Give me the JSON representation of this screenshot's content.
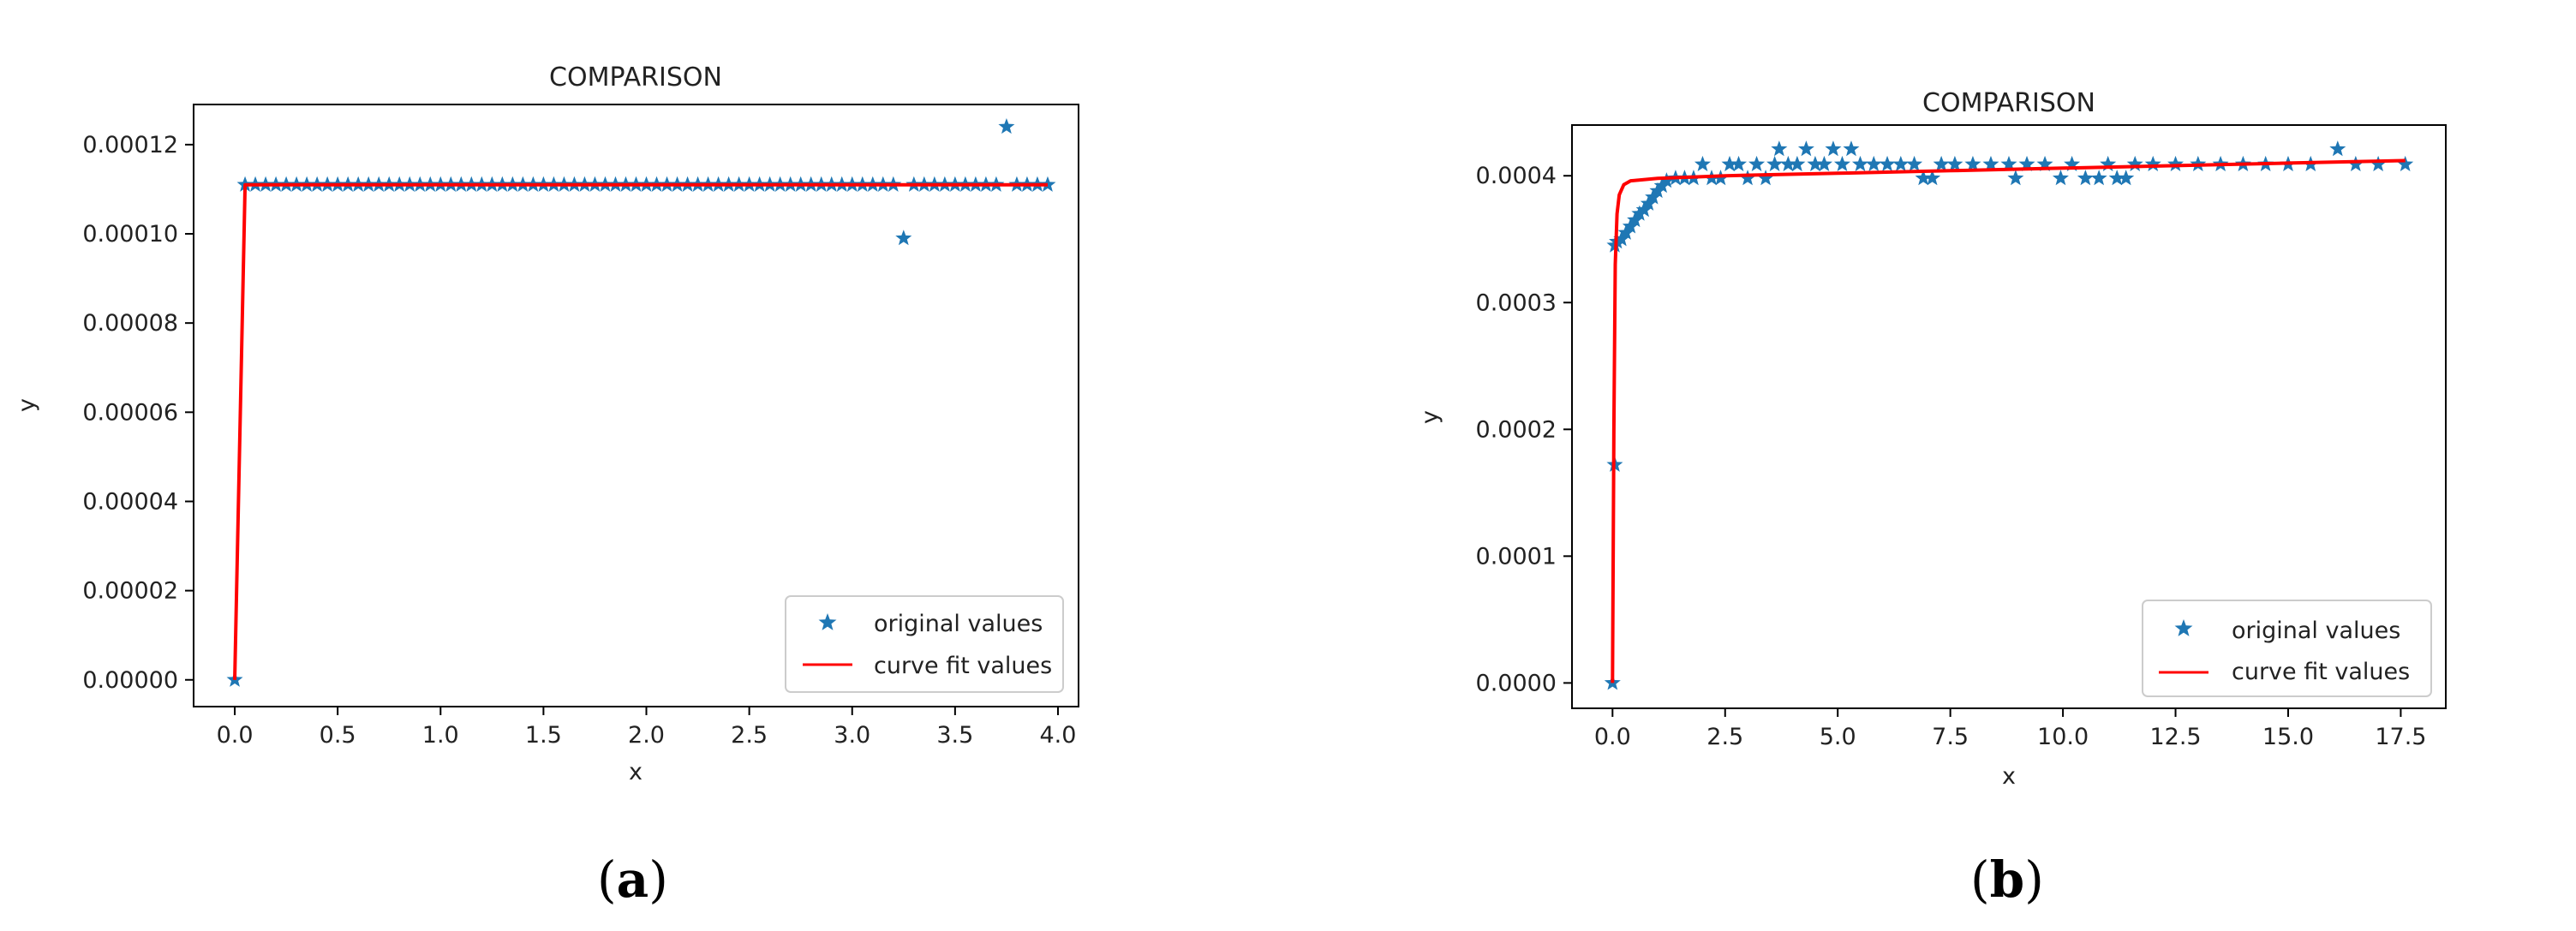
{
  "chart_data": [
    {
      "type": "scatter",
      "title": "COMPARISON",
      "xlabel": "x",
      "ylabel": "y",
      "xlim": [
        -0.2,
        4.1
      ],
      "ylim": [
        -6e-06,
        0.000129
      ],
      "xticks": [
        0.0,
        0.5,
        1.0,
        1.5,
        2.0,
        2.5,
        3.0,
        3.5,
        4.0
      ],
      "xtick_labels": [
        "0.0",
        "0.5",
        "1.0",
        "1.5",
        "2.0",
        "2.5",
        "3.0",
        "3.5",
        "4.0"
      ],
      "yticks": [
        0.0,
        2e-05,
        4e-05,
        6e-05,
        8e-05,
        0.0001,
        0.00012
      ],
      "ytick_labels": [
        "0.00000",
        "0.00002",
        "0.00004",
        "0.00006",
        "0.00008",
        "0.00010",
        "0.00012"
      ],
      "legend_position": "lower-right",
      "grid": false,
      "panel_label": {
        "open": "(",
        "letter": "a",
        "close": ")"
      },
      "series": [
        {
          "name": "original values",
          "kind": "scatter",
          "marker": "star",
          "color": "#1f77b4",
          "points": [
            [
              0.0,
              0.0
            ],
            [
              0.05,
              0.000111
            ],
            [
              0.1,
              0.000111
            ],
            [
              0.15,
              0.000111
            ],
            [
              0.2,
              0.000111
            ],
            [
              0.25,
              0.000111
            ],
            [
              0.3,
              0.000111
            ],
            [
              0.35,
              0.000111
            ],
            [
              0.4,
              0.000111
            ],
            [
              0.45,
              0.000111
            ],
            [
              0.5,
              0.000111
            ],
            [
              0.55,
              0.000111
            ],
            [
              0.6,
              0.000111
            ],
            [
              0.65,
              0.000111
            ],
            [
              0.7,
              0.000111
            ],
            [
              0.75,
              0.000111
            ],
            [
              0.8,
              0.000111
            ],
            [
              0.85,
              0.000111
            ],
            [
              0.9,
              0.000111
            ],
            [
              0.95,
              0.000111
            ],
            [
              1.0,
              0.000111
            ],
            [
              1.05,
              0.000111
            ],
            [
              1.1,
              0.000111
            ],
            [
              1.15,
              0.000111
            ],
            [
              1.2,
              0.000111
            ],
            [
              1.25,
              0.000111
            ],
            [
              1.3,
              0.000111
            ],
            [
              1.35,
              0.000111
            ],
            [
              1.4,
              0.000111
            ],
            [
              1.45,
              0.000111
            ],
            [
              1.5,
              0.000111
            ],
            [
              1.55,
              0.000111
            ],
            [
              1.6,
              0.000111
            ],
            [
              1.65,
              0.000111
            ],
            [
              1.7,
              0.000111
            ],
            [
              1.75,
              0.000111
            ],
            [
              1.8,
              0.000111
            ],
            [
              1.85,
              0.000111
            ],
            [
              1.9,
              0.000111
            ],
            [
              1.95,
              0.000111
            ],
            [
              2.0,
              0.000111
            ],
            [
              2.05,
              0.000111
            ],
            [
              2.1,
              0.000111
            ],
            [
              2.15,
              0.000111
            ],
            [
              2.2,
              0.000111
            ],
            [
              2.25,
              0.000111
            ],
            [
              2.3,
              0.000111
            ],
            [
              2.35,
              0.000111
            ],
            [
              2.4,
              0.000111
            ],
            [
              2.45,
              0.000111
            ],
            [
              2.5,
              0.000111
            ],
            [
              2.55,
              0.000111
            ],
            [
              2.6,
              0.000111
            ],
            [
              2.65,
              0.000111
            ],
            [
              2.7,
              0.000111
            ],
            [
              2.75,
              0.000111
            ],
            [
              2.8,
              0.000111
            ],
            [
              2.85,
              0.000111
            ],
            [
              2.9,
              0.000111
            ],
            [
              2.95,
              0.000111
            ],
            [
              3.0,
              0.000111
            ],
            [
              3.05,
              0.000111
            ],
            [
              3.1,
              0.000111
            ],
            [
              3.15,
              0.000111
            ],
            [
              3.2,
              0.000111
            ],
            [
              3.25,
              9.9e-05
            ],
            [
              3.3,
              0.000111
            ],
            [
              3.35,
              0.000111
            ],
            [
              3.4,
              0.000111
            ],
            [
              3.45,
              0.000111
            ],
            [
              3.5,
              0.000111
            ],
            [
              3.55,
              0.000111
            ],
            [
              3.6,
              0.000111
            ],
            [
              3.65,
              0.000111
            ],
            [
              3.7,
              0.000111
            ],
            [
              3.75,
              0.000124
            ],
            [
              3.8,
              0.000111
            ],
            [
              3.85,
              0.000111
            ],
            [
              3.9,
              0.000111
            ],
            [
              3.95,
              0.000111
            ]
          ]
        },
        {
          "name": "curve fit values",
          "kind": "line",
          "color": "#ff0000",
          "points": [
            [
              0.0,
              0.0
            ],
            [
              0.05,
              0.000111
            ],
            [
              3.95,
              0.000111
            ]
          ]
        }
      ]
    },
    {
      "type": "scatter",
      "title": "COMPARISON",
      "xlabel": "x",
      "ylabel": "y",
      "xlim": [
        -0.9,
        18.5
      ],
      "ylim": [
        -2e-05,
        0.00044
      ],
      "xticks": [
        0.0,
        2.5,
        5.0,
        7.5,
        10.0,
        12.5,
        15.0,
        17.5
      ],
      "xtick_labels": [
        "0.0",
        "2.5",
        "5.0",
        "7.5",
        "10.0",
        "12.5",
        "15.0",
        "17.5"
      ],
      "yticks": [
        0.0,
        0.0001,
        0.0002,
        0.0003,
        0.0004
      ],
      "ytick_labels": [
        "0.0000",
        "0.0001",
        "0.0002",
        "0.0003",
        "0.0004"
      ],
      "legend_position": "lower-right",
      "grid": false,
      "panel_label": {
        "open": "(",
        "letter": "b",
        "close": ")"
      },
      "series": [
        {
          "name": "original values",
          "kind": "scatter",
          "marker": "star",
          "color": "#1f77b4",
          "points": [
            [
              0.0,
              0.0
            ],
            [
              0.05,
              0.000172
            ],
            [
              0.05,
              0.000345
            ],
            [
              0.1,
              0.000348
            ],
            [
              0.2,
              0.00035
            ],
            [
              0.3,
              0.000355
            ],
            [
              0.4,
              0.00036
            ],
            [
              0.5,
              0.000365
            ],
            [
              0.6,
              0.00037
            ],
            [
              0.7,
              0.000373
            ],
            [
              0.8,
              0.000378
            ],
            [
              0.9,
              0.000383
            ],
            [
              1.0,
              0.000388
            ],
            [
              1.1,
              0.000392
            ],
            [
              1.2,
              0.000396
            ],
            [
              1.4,
              0.000398
            ],
            [
              1.6,
              0.000398
            ],
            [
              1.8,
              0.000398
            ],
            [
              2.0,
              0.000409
            ],
            [
              2.2,
              0.000398
            ],
            [
              2.4,
              0.000398
            ],
            [
              2.6,
              0.000409
            ],
            [
              2.8,
              0.000409
            ],
            [
              3.0,
              0.000398
            ],
            [
              3.2,
              0.000409
            ],
            [
              3.4,
              0.000398
            ],
            [
              3.6,
              0.000409
            ],
            [
              3.7,
              0.000421
            ],
            [
              3.9,
              0.000409
            ],
            [
              4.1,
              0.000409
            ],
            [
              4.3,
              0.000421
            ],
            [
              4.5,
              0.000409
            ],
            [
              4.7,
              0.000409
            ],
            [
              4.9,
              0.000421
            ],
            [
              5.1,
              0.000409
            ],
            [
              5.3,
              0.000421
            ],
            [
              5.5,
              0.000409
            ],
            [
              5.8,
              0.000409
            ],
            [
              6.1,
              0.000409
            ],
            [
              6.4,
              0.000409
            ],
            [
              6.7,
              0.000409
            ],
            [
              6.9,
              0.000398
            ],
            [
              7.1,
              0.000398
            ],
            [
              7.3,
              0.000409
            ],
            [
              7.6,
              0.000409
            ],
            [
              8.0,
              0.000409
            ],
            [
              8.4,
              0.000409
            ],
            [
              8.8,
              0.000409
            ],
            [
              8.95,
              0.000398
            ],
            [
              9.2,
              0.000409
            ],
            [
              9.6,
              0.000409
            ],
            [
              9.95,
              0.000398
            ],
            [
              10.2,
              0.000409
            ],
            [
              10.5,
              0.000398
            ],
            [
              10.8,
              0.000398
            ],
            [
              11.0,
              0.000409
            ],
            [
              11.2,
              0.000398
            ],
            [
              11.4,
              0.000398
            ],
            [
              11.6,
              0.000409
            ],
            [
              12.0,
              0.000409
            ],
            [
              12.5,
              0.000409
            ],
            [
              13.0,
              0.000409
            ],
            [
              13.5,
              0.000409
            ],
            [
              14.0,
              0.000409
            ],
            [
              14.5,
              0.000409
            ],
            [
              15.0,
              0.000409
            ],
            [
              15.5,
              0.000409
            ],
            [
              16.1,
              0.000421
            ],
            [
              16.5,
              0.000409
            ],
            [
              17.0,
              0.000409
            ],
            [
              17.6,
              0.000409
            ]
          ]
        },
        {
          "name": "curve fit values",
          "kind": "line",
          "color": "#ff0000",
          "points": [
            [
              0.0,
              0.0
            ],
            [
              0.03,
              0.0002
            ],
            [
              0.06,
              0.00033
            ],
            [
              0.1,
              0.00037
            ],
            [
              0.15,
              0.000385
            ],
            [
              0.25,
              0.000393
            ],
            [
              0.4,
              0.000396
            ],
            [
              1.0,
              0.000398
            ],
            [
              2.5,
              0.0004
            ],
            [
              5.0,
              0.000402
            ],
            [
              7.5,
              0.000404
            ],
            [
              10.0,
              0.000406
            ],
            [
              12.5,
              0.000408
            ],
            [
              15.0,
              0.00041
            ],
            [
              17.6,
              0.000412
            ]
          ]
        }
      ]
    }
  ]
}
